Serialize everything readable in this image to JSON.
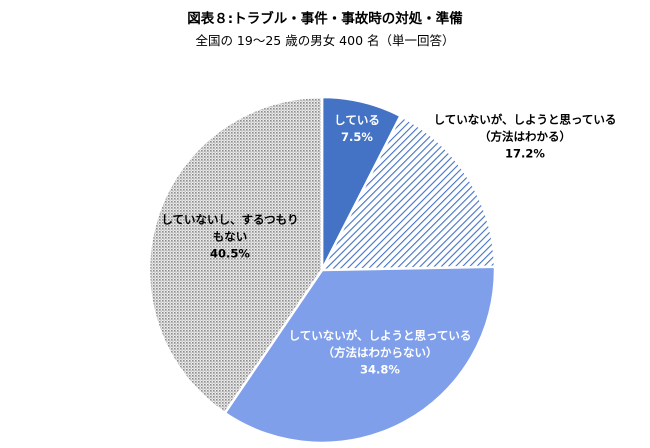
{
  "chart": {
    "title": "図表８:トラブル・事件・事故時の対処・準備",
    "subtitle": "全国の 19～25 歳の男女 400 名（単一回答）"
  },
  "chart_data": {
    "type": "pie",
    "title": "図表８:トラブル・事件・事故時の対処・準備",
    "subtitle": "全国の 19～25 歳の男女 400 名（単一回答）",
    "unit": "%",
    "slices": [
      {
        "label_lines": [
          "している"
        ],
        "value_label": "7.5%",
        "value": 7.5,
        "color": "#4472C4",
        "fill": "solid",
        "label_color": "#ffffff"
      },
      {
        "label_lines": [
          "していないが、しようと思っている",
          "（方法はわかる）"
        ],
        "value_label": "17.2%",
        "value": 17.2,
        "color": "#4472C4",
        "fill": "diagonal-hatch",
        "label_color": "#000000"
      },
      {
        "label_lines": [
          "していないが、しようと思っている",
          "（方法はわからない）"
        ],
        "value_label": "34.8%",
        "value": 34.8,
        "color": "#7F9FEA",
        "fill": "solid",
        "label_color": "#ffffff"
      },
      {
        "label_lines": [
          "していないし、するつもり",
          "もない"
        ],
        "value_label": "40.5%",
        "value": 40.5,
        "color": "#A6A6A6",
        "fill": "dotted",
        "label_color": "#000000"
      }
    ]
  }
}
